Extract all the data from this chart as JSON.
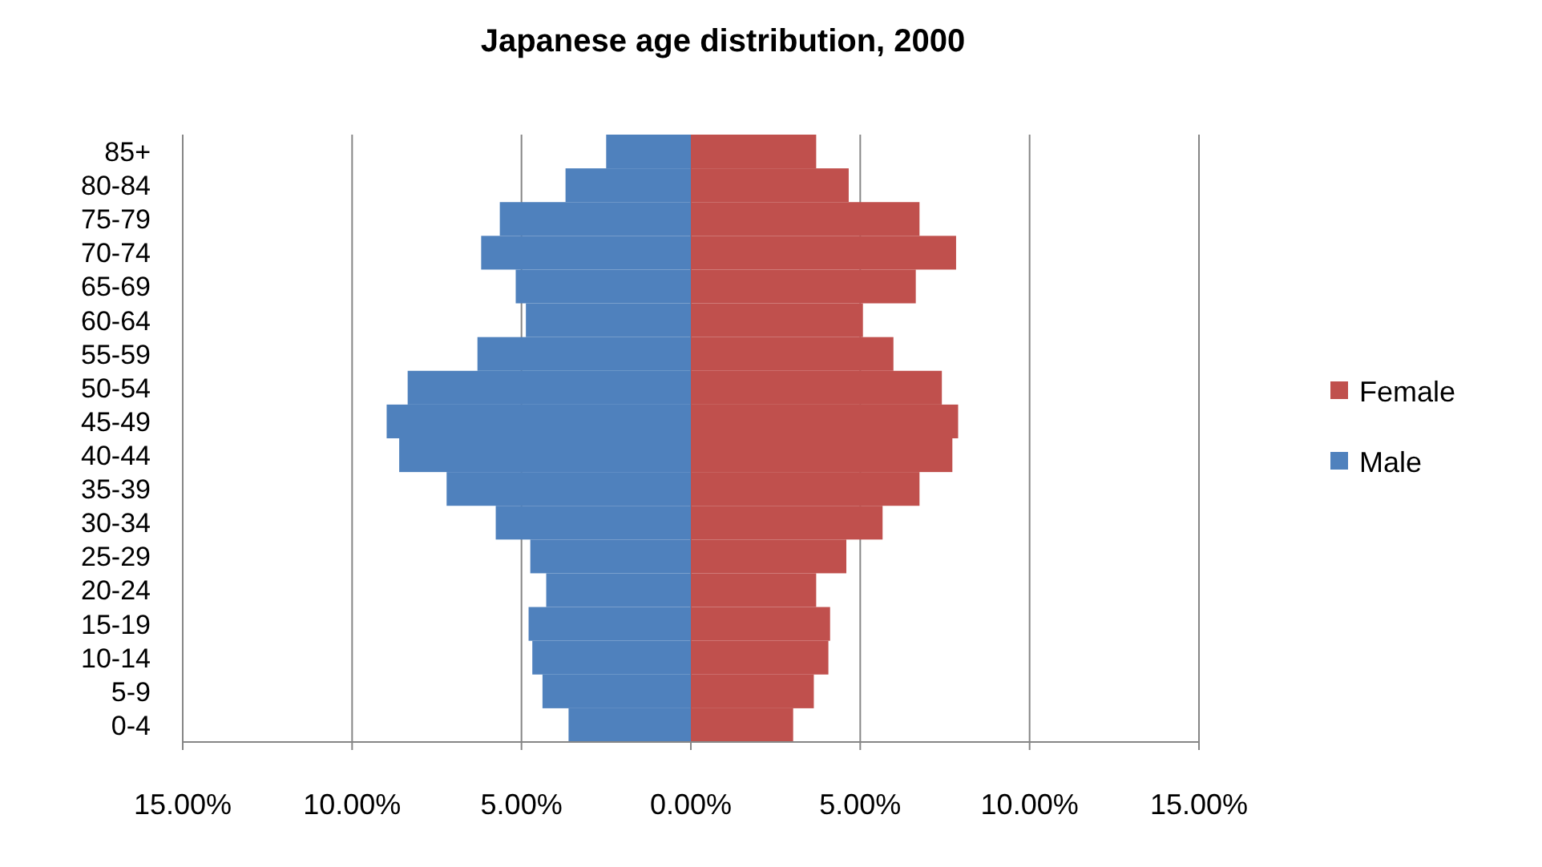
{
  "chart_data": {
    "type": "bar",
    "orientation": "horizontal",
    "stacked": true,
    "title": "Japanese age distribution, 2000",
    "categories": [
      "85+",
      "80-84",
      "75-79",
      "70-74",
      "65-69",
      "60-64",
      "55-59",
      "50-54",
      "45-49",
      "40-44",
      "35-39",
      "30-34",
      "25-29",
      "20-24",
      "15-19",
      "10-14",
      "5-9",
      "0-4"
    ],
    "series": [
      {
        "name": "Female",
        "color": "#c0504d",
        "values": [
          3.7,
          4.66,
          6.75,
          7.83,
          6.64,
          5.08,
          5.98,
          7.41,
          7.89,
          7.72,
          6.75,
          5.66,
          4.59,
          3.7,
          4.11,
          4.06,
          3.63,
          3.02
        ]
      },
      {
        "name": "Male",
        "color": "#4f81bd",
        "values": [
          -2.5,
          -3.7,
          -5.64,
          -6.19,
          -5.17,
          -4.87,
          -6.3,
          -8.36,
          -8.98,
          -8.61,
          -7.21,
          -5.76,
          -4.74,
          -4.27,
          -4.79,
          -4.68,
          -4.38,
          -3.61
        ]
      }
    ],
    "xlim": [
      -15,
      15
    ],
    "xticks": [
      {
        "value": -15,
        "label": "15.00%"
      },
      {
        "value": -10,
        "label": "10.00%"
      },
      {
        "value": -5,
        "label": "5.00%"
      },
      {
        "value": 0,
        "label": "0.00%"
      },
      {
        "value": 5,
        "label": "5.00%"
      },
      {
        "value": 10,
        "label": "10.00%"
      },
      {
        "value": 15,
        "label": "15.00%"
      }
    ],
    "grid": "x",
    "legend": "right"
  }
}
